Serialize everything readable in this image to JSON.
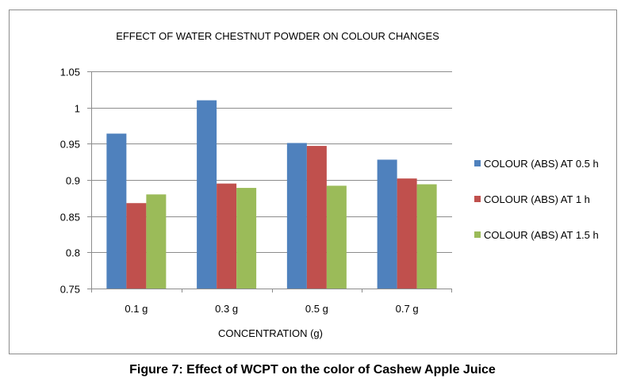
{
  "caption": "Figure 7: Effect of WCPT on the color of Cashew Apple Juice",
  "chart_data": {
    "type": "bar",
    "title": "EFFECT OF WATER CHESTNUT POWDER ON COLOUR CHANGES",
    "xlabel": "CONCENTRATION (g)",
    "ylabel": "",
    "categories": [
      "0.1 g",
      "0.3 g",
      "0.5 g",
      "0.7 g"
    ],
    "ylim": [
      0.75,
      1.05
    ],
    "yticks": [
      0.75,
      0.8,
      0.85,
      0.9,
      0.95,
      1,
      1.05
    ],
    "ytick_labels": [
      "0.75",
      "0.8",
      "0.85",
      "0.9",
      "0.95",
      "1",
      "1.05"
    ],
    "grid": true,
    "legend_position": "right",
    "series": [
      {
        "name": "COLOUR (ABS) AT 0.5 h",
        "color": "#4F81BD",
        "values": [
          0.964,
          1.01,
          0.951,
          0.928
        ]
      },
      {
        "name": "COLOUR (ABS) AT 1 h",
        "color": "#C0504D",
        "values": [
          0.868,
          0.895,
          0.947,
          0.902
        ]
      },
      {
        "name": "COLOUR (ABS) AT 1.5 h",
        "color": "#9BBB59",
        "values": [
          0.88,
          0.889,
          0.892,
          0.894
        ]
      }
    ]
  }
}
